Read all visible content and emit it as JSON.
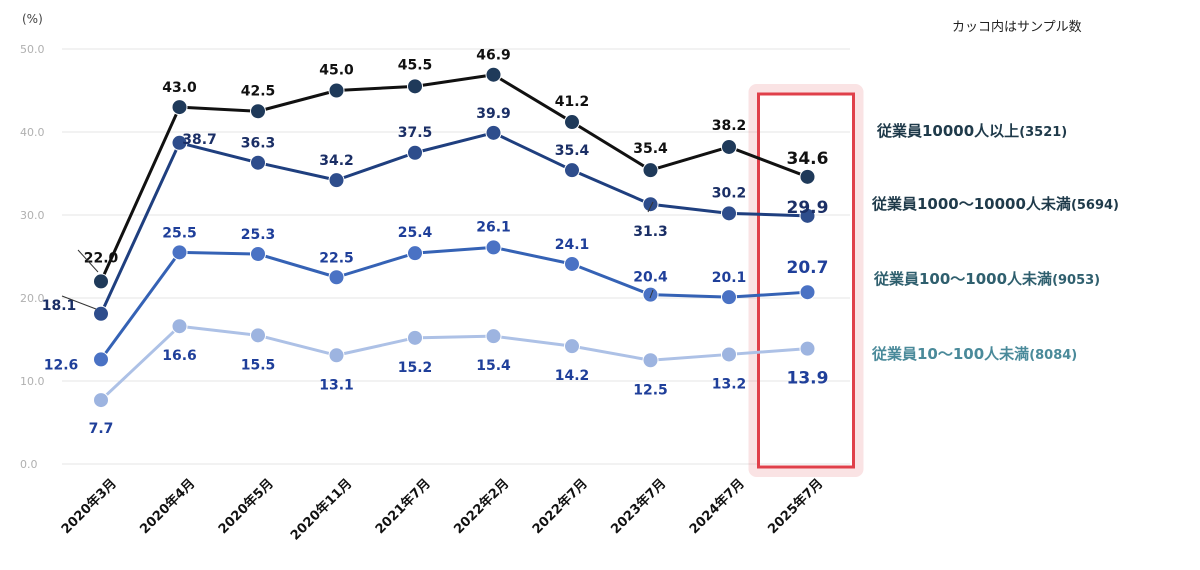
{
  "chart_data": {
    "type": "line",
    "unit_label": "(%)",
    "note": "カッコ内はサンプル数",
    "ylim": [
      0,
      50
    ],
    "yticks": [
      "0.0",
      "10.0",
      "20.0",
      "30.0",
      "40.0",
      "50.0"
    ],
    "categories": [
      "2020年3月",
      "2020年4月",
      "2020年5月",
      "2020年11月",
      "2021年7月",
      "2022年2月",
      "2022年7月",
      "2023年7月",
      "2024年7月",
      "2025年7月"
    ],
    "series": [
      {
        "name": "従業員10000人以上",
        "sample": "(3521)",
        "color": "#1f3a5a",
        "line": "#111111",
        "label_color": "#111111",
        "values": [
          22.0,
          43.0,
          42.5,
          45.0,
          45.5,
          46.9,
          41.2,
          35.4,
          38.2,
          34.6
        ],
        "labels": [
          "22.0",
          "43.0",
          "42.5",
          "45.0",
          "45.5",
          "46.9",
          "41.2",
          "35.4",
          "38.2",
          "34.6"
        ]
      },
      {
        "name": "従業員1000〜10000人未満",
        "sample": "(5694)",
        "color": "#2e4d8c",
        "line": "#1f3f7f",
        "label_color": "#1b2f66",
        "values": [
          18.1,
          38.7,
          36.3,
          34.2,
          37.5,
          39.9,
          35.4,
          31.3,
          30.2,
          29.9
        ],
        "labels": [
          "18.1",
          "38.7",
          "36.3",
          "34.2",
          "37.5",
          "39.9",
          "35.4",
          "31.3",
          "30.2",
          "29.9"
        ]
      },
      {
        "name": "従業員100〜1000人未満",
        "sample": "(9053)",
        "color": "#4a72c4",
        "line": "#3562b5",
        "label_color": "#1f3f9a",
        "values": [
          12.6,
          25.5,
          25.3,
          22.5,
          25.4,
          26.1,
          24.1,
          20.4,
          20.1,
          20.7
        ],
        "labels": [
          "12.6",
          "25.5",
          "25.3",
          "22.5",
          "25.4",
          "26.1",
          "24.1",
          "20.4",
          "20.1",
          "20.7"
        ]
      },
      {
        "name": "従業員10〜100人未満",
        "sample": "(8084)",
        "color": "#9db4e0",
        "line": "#adc1e6",
        "label_color": "#1f3f9a",
        "values": [
          7.7,
          16.6,
          15.5,
          13.1,
          15.2,
          15.4,
          14.2,
          12.5,
          13.2,
          13.9
        ],
        "labels": [
          "7.7",
          "16.6",
          "15.5",
          "13.1",
          "15.2",
          "15.4",
          "14.2",
          "12.5",
          "13.2",
          "13.9"
        ]
      }
    ],
    "legend_colors": [
      "#1f3a4a",
      "#1f3a4a",
      "#2f5f6e",
      "#4a8a9a"
    ],
    "highlight_category": "2025年7月",
    "highlight_color": "#e0404a"
  }
}
